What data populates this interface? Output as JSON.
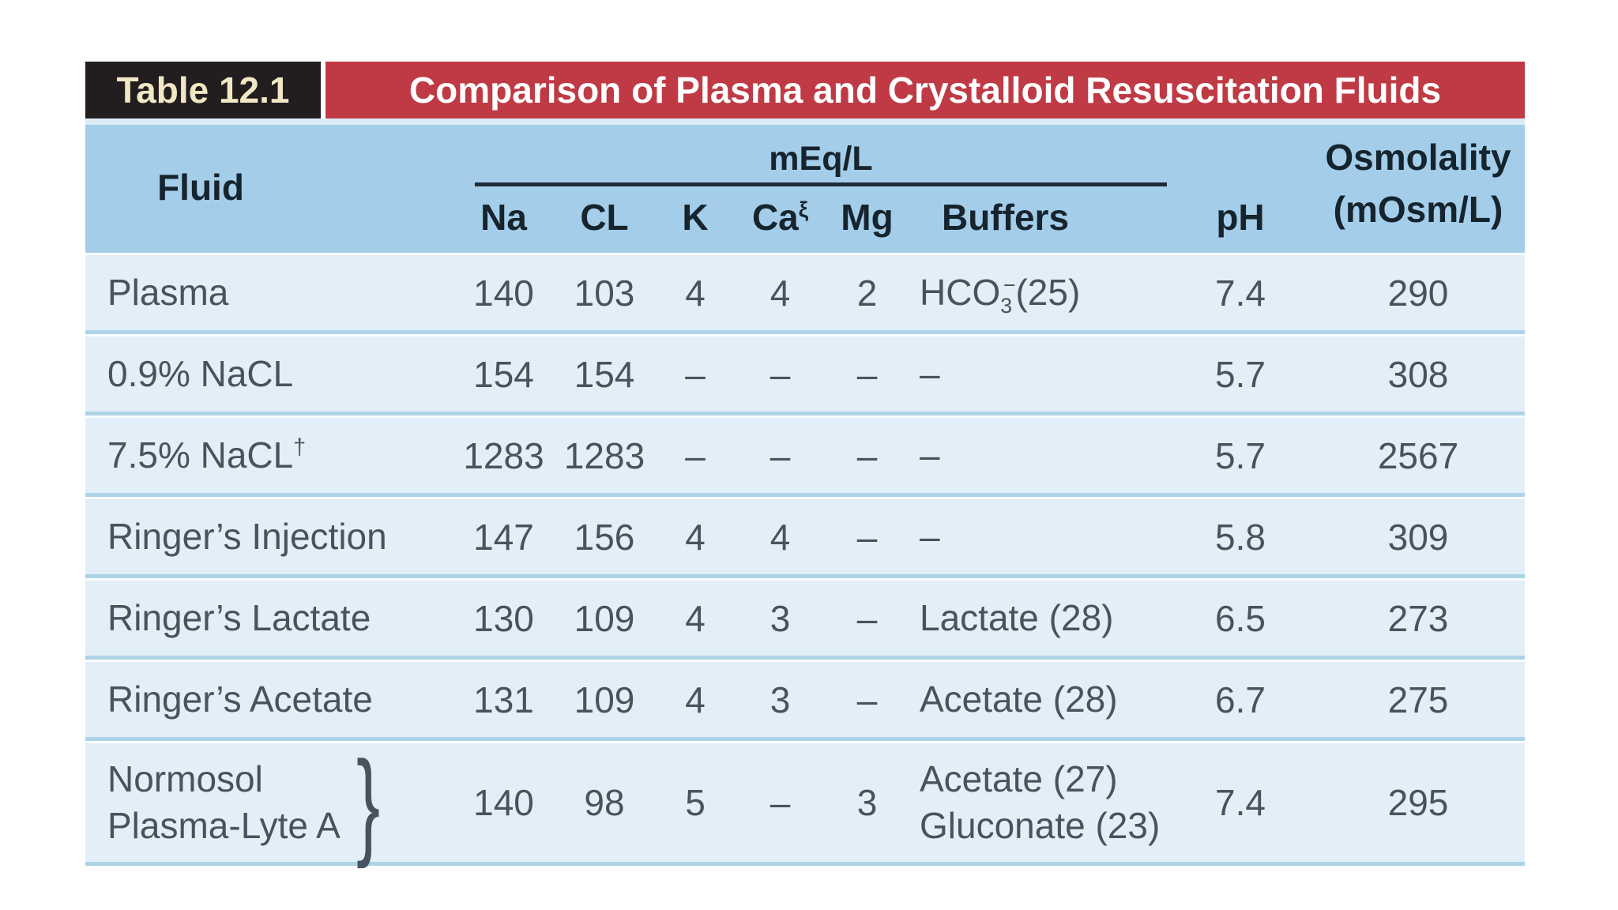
{
  "title": {
    "label": "Table 12.1",
    "heading": "Comparison of Plasma and Crystalloid Resuscitation Fluids"
  },
  "header": {
    "fluid": "Fluid",
    "unit_group": "mEq/L",
    "na": "Na",
    "cl": "CL",
    "k": "K",
    "ca": "Ca",
    "ca_sup": "ξ",
    "mg": "Mg",
    "buffers": "Buffers",
    "ph": "pH",
    "osmolality_line1": "Osmolality",
    "osmolality_line2": "(mOsm/L)"
  },
  "rows": [
    {
      "fluid_lines": [
        "Plasma"
      ],
      "fluid_sup": "",
      "brace": false,
      "na": "140",
      "cl": "103",
      "k": "4",
      "ca": "4",
      "mg": "2",
      "buffers": [
        {
          "text": "HCO",
          "sub": "3",
          "sup": "−",
          "tail": "(25)"
        }
      ],
      "ph": "7.4",
      "osmolality": "290"
    },
    {
      "fluid_lines": [
        "0.9% NaCL"
      ],
      "fluid_sup": "",
      "brace": false,
      "na": "154",
      "cl": "154",
      "k": "–",
      "ca": "–",
      "mg": "–",
      "buffers": [
        {
          "text": "–"
        }
      ],
      "ph": "5.7",
      "osmolality": "308"
    },
    {
      "fluid_lines": [
        "7.5% NaCL"
      ],
      "fluid_sup": "†",
      "brace": false,
      "na": "1283",
      "cl": "1283",
      "k": "–",
      "ca": "–",
      "mg": "–",
      "buffers": [
        {
          "text": "–"
        }
      ],
      "ph": "5.7",
      "osmolality": "2567"
    },
    {
      "fluid_lines": [
        "Ringer’s Injection"
      ],
      "fluid_sup": "",
      "brace": false,
      "na": "147",
      "cl": "156",
      "k": "4",
      "ca": "4",
      "mg": "–",
      "buffers": [
        {
          "text": "–"
        }
      ],
      "ph": "5.8",
      "osmolality": "309"
    },
    {
      "fluid_lines": [
        "Ringer’s Lactate"
      ],
      "fluid_sup": "",
      "brace": false,
      "na": "130",
      "cl": "109",
      "k": "4",
      "ca": "3",
      "mg": "–",
      "buffers": [
        {
          "text": "Lactate (28)"
        }
      ],
      "ph": "6.5",
      "osmolality": "273"
    },
    {
      "fluid_lines": [
        "Ringer’s Acetate"
      ],
      "fluid_sup": "",
      "brace": false,
      "na": "131",
      "cl": "109",
      "k": "4",
      "ca": "3",
      "mg": "–",
      "buffers": [
        {
          "text": "Acetate (28)"
        }
      ],
      "ph": "6.7",
      "osmolality": "275"
    },
    {
      "fluid_lines": [
        "Normosol",
        "Plasma-Lyte A"
      ],
      "fluid_sup": "",
      "brace": true,
      "na": "140",
      "cl": "98",
      "k": "5",
      "ca": "–",
      "mg": "3",
      "buffers": [
        {
          "text": "Acetate (27)"
        },
        {
          "text": "Gluconate (23)"
        }
      ],
      "ph": "7.4",
      "osmolality": "295"
    }
  ],
  "chart_data": {
    "type": "table",
    "title": "Comparison of Plasma and Crystalloid Resuscitation Fluids",
    "columns": [
      "Fluid",
      "Na (mEq/L)",
      "CL (mEq/L)",
      "K (mEq/L)",
      "Ca (mEq/L)",
      "Mg (mEq/L)",
      "Buffers (mEq/L)",
      "pH",
      "Osmolality (mOsm/L)"
    ],
    "records": [
      [
        "Plasma",
        "140",
        "103",
        "4",
        "4",
        "2",
        "HCO3−(25)",
        "7.4",
        "290"
      ],
      [
        "0.9% NaCL",
        "154",
        "154",
        "–",
        "–",
        "–",
        "–",
        "5.7",
        "308"
      ],
      [
        "7.5% NaCL†",
        "1283",
        "1283",
        "–",
        "–",
        "–",
        "–",
        "5.7",
        "2567"
      ],
      [
        "Ringer’s Injection",
        "147",
        "156",
        "4",
        "4",
        "–",
        "–",
        "5.8",
        "309"
      ],
      [
        "Ringer’s Lactate",
        "130",
        "109",
        "4",
        "3",
        "–",
        "Lactate (28)",
        "6.5",
        "273"
      ],
      [
        "Ringer’s Acetate",
        "131",
        "109",
        "4",
        "3",
        "–",
        "Acetate (28)",
        "6.7",
        "275"
      ],
      [
        "Normosol / Plasma-Lyte A",
        "140",
        "98",
        "5",
        "–",
        "3",
        "Acetate (27), Gluconate (23)",
        "7.4",
        "295"
      ]
    ]
  },
  "colors": {
    "label_bg": "#221e1f",
    "label_text": "#f2e7c4",
    "title_bg": "#bf3a44",
    "title_text": "#ffffff",
    "header_bg": "#a3cde9",
    "header_text": "#16242e",
    "row_bg": "#e2eff8",
    "row_divider": "#aed3e7",
    "body_text": "#47545e",
    "rule": "#1e2b37"
  }
}
